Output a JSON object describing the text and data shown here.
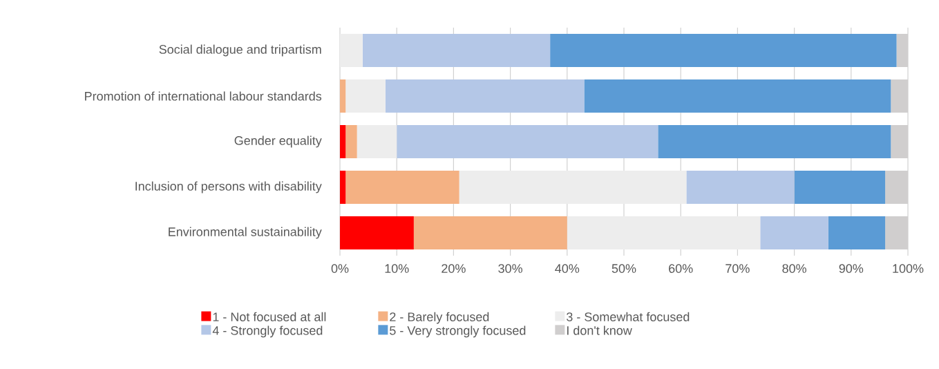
{
  "chart_data": {
    "type": "bar",
    "orientation": "horizontal",
    "stacked": true,
    "categories": [
      "Social dialogue and tripartism",
      "Promotion of international labour standards",
      "Gender equality",
      "Inclusion of persons with disability",
      "Environmental sustainability"
    ],
    "series": [
      {
        "name": "1 - Not focused at all",
        "color": "#ff0000",
        "values": [
          0,
          0,
          1,
          1,
          13
        ]
      },
      {
        "name": "2 - Barely focused",
        "color": "#f4b183",
        "values": [
          0,
          1,
          2,
          20,
          27
        ]
      },
      {
        "name": "3 - Somewhat focused",
        "color": "#ededed",
        "values": [
          4,
          7,
          7,
          40,
          34
        ]
      },
      {
        "name": "4 - Strongly focused",
        "color": "#b4c7e7",
        "values": [
          33,
          35,
          46,
          19,
          12
        ]
      },
      {
        "name": "5 - Very strongly focused",
        "color": "#5b9bd5",
        "values": [
          61,
          54,
          41,
          16,
          10
        ]
      },
      {
        "name": "I don't know",
        "color": "#d0cece",
        "values": [
          2,
          3,
          3,
          4,
          4
        ]
      }
    ],
    "xlim": [
      0,
      100
    ],
    "xticks": [
      {
        "value": 0,
        "label": "0%"
      },
      {
        "value": 10,
        "label": "10%"
      },
      {
        "value": 20,
        "label": "20%"
      },
      {
        "value": 30,
        "label": "30%"
      },
      {
        "value": 40,
        "label": "40%"
      },
      {
        "value": 50,
        "label": "50%"
      },
      {
        "value": 60,
        "label": "60%"
      },
      {
        "value": 70,
        "label": "70%"
      },
      {
        "value": 80,
        "label": "80%"
      },
      {
        "value": 90,
        "label": "90%"
      },
      {
        "value": 100,
        "label": "100%"
      }
    ],
    "grid": "x",
    "legend": "bottom"
  }
}
